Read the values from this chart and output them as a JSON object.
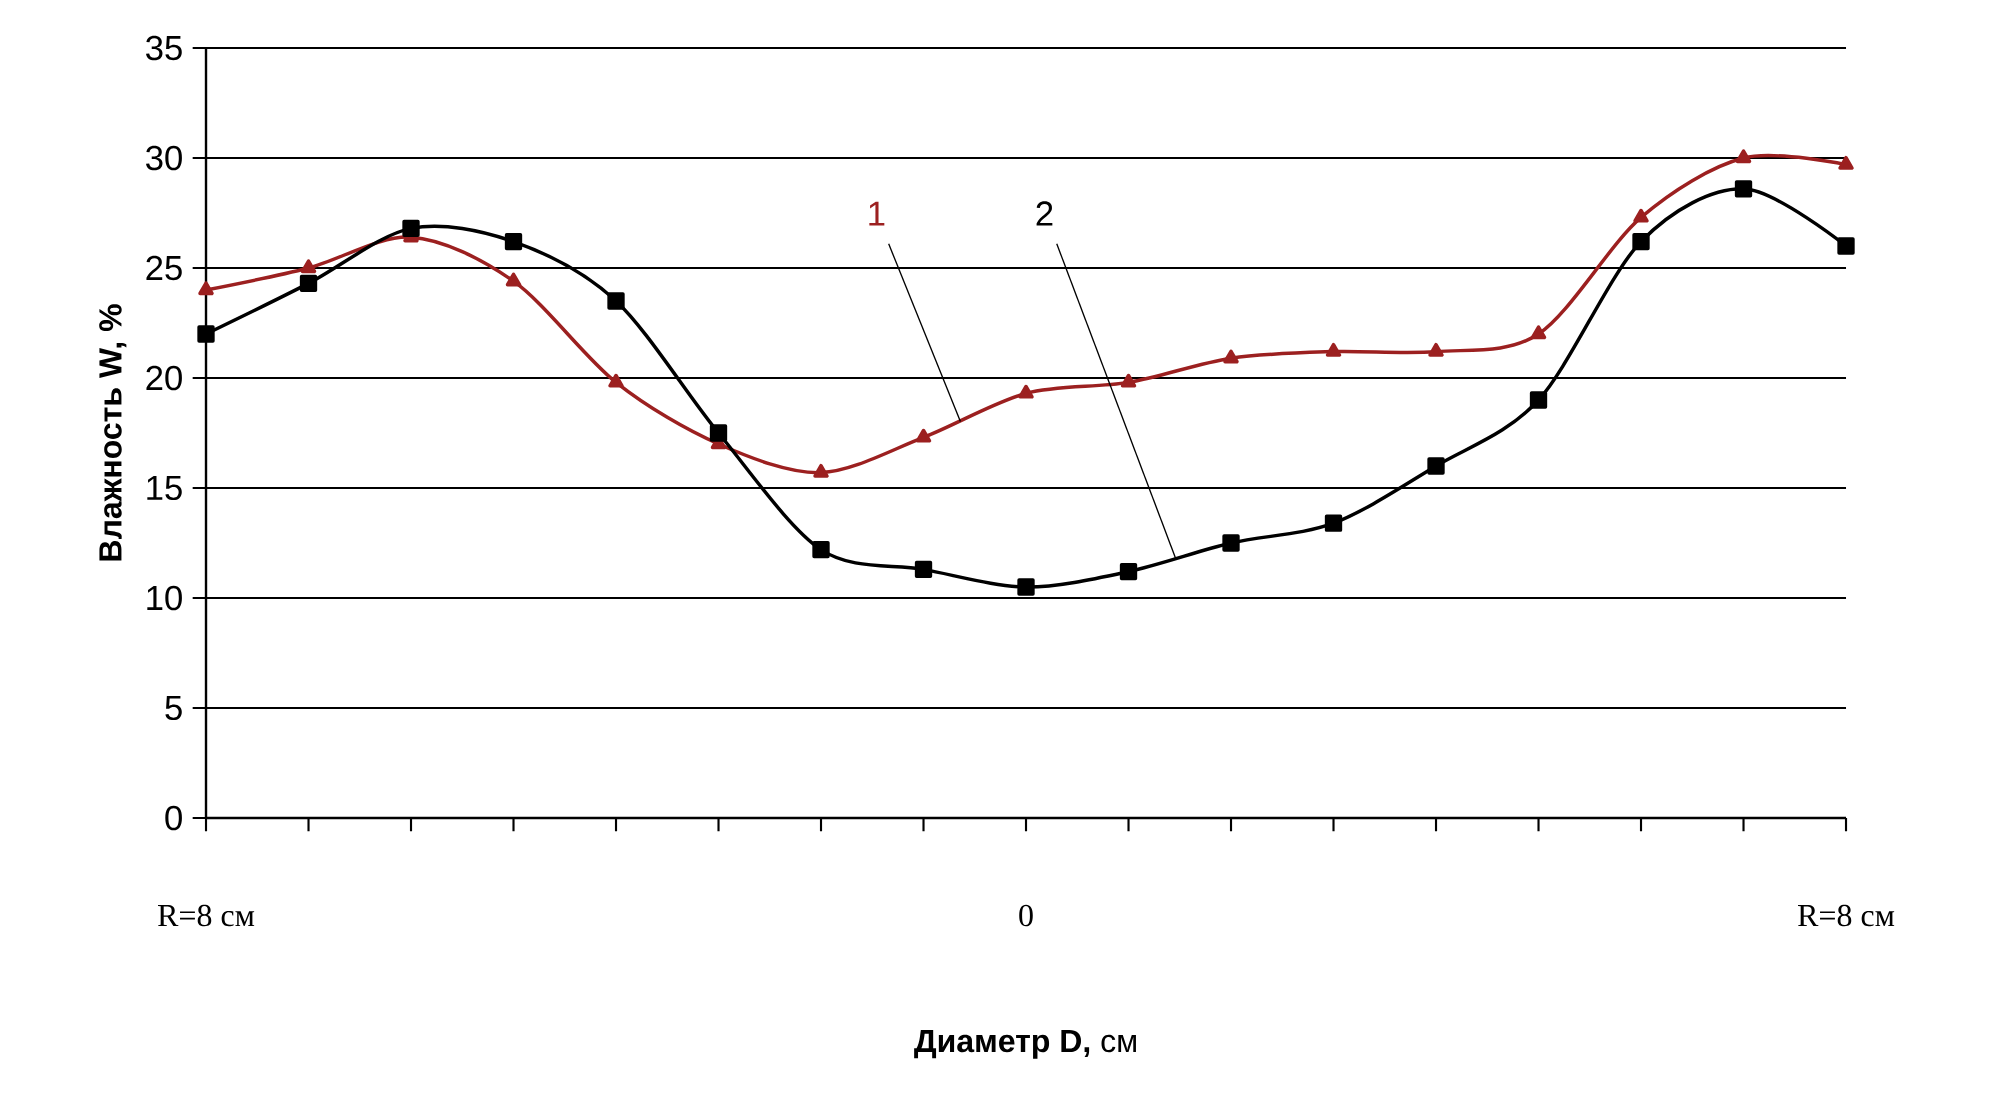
{
  "chart_data": {
    "type": "line",
    "xlabel": "**Диаметр D,** см",
    "ylabel": "Влажность W, %",
    "categories": [
      "R=8 см",
      null,
      null,
      null,
      null,
      null,
      null,
      null,
      "0",
      null,
      null,
      null,
      null,
      null,
      null,
      null,
      "R=8 см"
    ],
    "series": [
      {
        "name": "1",
        "color": "#9c2020",
        "marker": "triangle",
        "values": [
          24,
          25,
          26.4,
          24.4,
          19.8,
          17,
          15.7,
          17.3,
          19.3,
          19.8,
          20.9,
          21.2,
          21.2,
          22,
          27.3,
          30,
          29.7
        ]
      },
      {
        "name": "2",
        "color": "#000000",
        "marker": "square",
        "values": [
          22,
          24.3,
          26.8,
          26.2,
          23.5,
          17.5,
          12.2,
          11.3,
          10.5,
          11.2,
          12.5,
          13.4,
          16,
          19,
          26.2,
          28.6,
          26
        ]
      }
    ],
    "ylim": [
      0,
      35
    ],
    "yticks": [
      0,
      5,
      10,
      15,
      20,
      25,
      30,
      35
    ],
    "grid": "y",
    "line_style": "solid"
  }
}
